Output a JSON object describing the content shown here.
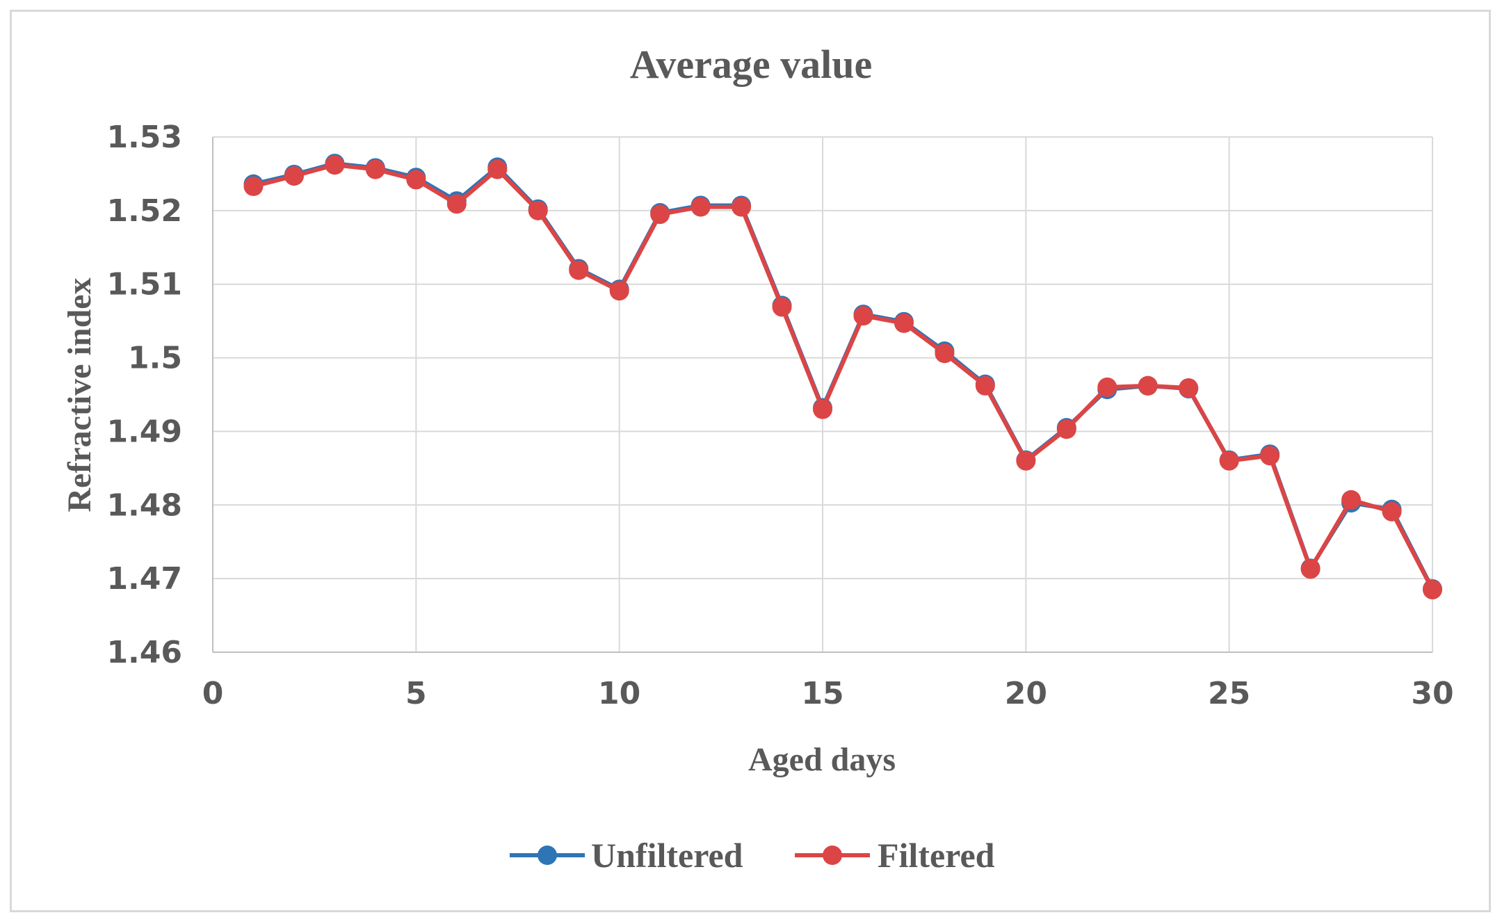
{
  "chart_data": {
    "type": "line",
    "title": "Average value",
    "xlabel": "Aged days",
    "ylabel": "Refractive index",
    "xlim": [
      0,
      30
    ],
    "ylim": [
      1.46,
      1.53
    ],
    "x_ticks": [
      "0",
      "5",
      "10",
      "15",
      "20",
      "25",
      "30"
    ],
    "y_ticks": [
      "1.46",
      "1.47",
      "1.48",
      "1.49",
      "1.5",
      "1.51",
      "1.52",
      "1.53"
    ],
    "grid": true,
    "legend_position": "bottom",
    "x": [
      1,
      2,
      3,
      4,
      5,
      6,
      7,
      8,
      9,
      10,
      11,
      12,
      13,
      14,
      15,
      16,
      17,
      18,
      19,
      20,
      21,
      22,
      23,
      24,
      25,
      26,
      27,
      28,
      29,
      30
    ],
    "series": [
      {
        "name": "Unfiltered",
        "color": "#2e75b6",
        "values": [
          1.5236,
          1.5249,
          1.5264,
          1.5258,
          1.5245,
          1.5213,
          1.5259,
          1.5202,
          1.5121,
          1.5093,
          1.5197,
          1.5207,
          1.5207,
          1.5071,
          1.4932,
          1.5059,
          1.5049,
          1.5009,
          1.4964,
          1.4861,
          1.4905,
          1.4957,
          1.4962,
          1.4958,
          1.4861,
          1.4869,
          1.4714,
          1.4803,
          1.4794,
          1.4686
        ]
      },
      {
        "name": "Filtered",
        "color": "#dc4545",
        "values": [
          1.5233,
          1.5247,
          1.5262,
          1.5256,
          1.5242,
          1.5209,
          1.5256,
          1.52,
          1.5119,
          1.5091,
          1.5195,
          1.5205,
          1.5205,
          1.5069,
          1.493,
          1.5057,
          1.5047,
          1.5006,
          1.4962,
          1.486,
          1.4903,
          1.496,
          1.4962,
          1.4959,
          1.486,
          1.4867,
          1.4713,
          1.4807,
          1.4791,
          1.4685
        ]
      }
    ]
  },
  "colors": {
    "grid": "#d9d9d9",
    "axis": "#bfbfbf",
    "text": "#595959",
    "frame": "#d9d9d9"
  }
}
